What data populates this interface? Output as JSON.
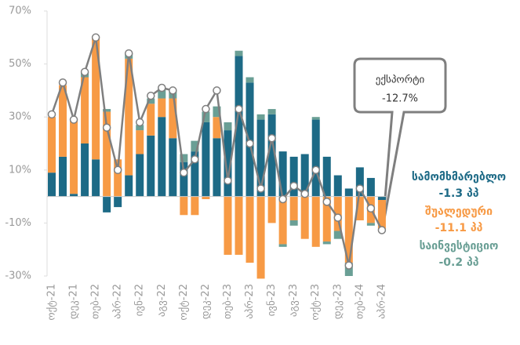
{
  "chart_data": {
    "type": "bar",
    "categories": [
      "ოქტ-21",
      null,
      "დეკ-21",
      null,
      "თებ-22",
      null,
      "აპრ-22",
      null,
      "ივნ-22",
      null,
      "აგვ-22",
      null,
      "ოქტ-22",
      null,
      "დეკ-22",
      null,
      "თებ-23",
      null,
      "აპრ-23",
      null,
      "ივნ-23",
      null,
      "აგვ-23",
      null,
      "ოქტ-23",
      null,
      "დეკ-23",
      null,
      "თებ-24",
      null,
      "აპრ-24"
    ],
    "series": [
      {
        "name": "სამომხმარებლო",
        "color": "#1d6a86",
        "values": [
          9,
          15,
          1,
          20,
          14,
          -6,
          -4,
          8,
          16,
          23,
          30,
          22,
          13,
          17,
          28,
          22,
          25,
          53,
          43,
          29,
          31,
          17,
          15,
          16,
          29,
          15,
          8,
          3,
          11,
          7,
          -1.3
        ],
        "value_labels": [
          null,
          null,
          null,
          null,
          null,
          null,
          null,
          null,
          null,
          null,
          null,
          null,
          null,
          null,
          null,
          null,
          null,
          null,
          null,
          null,
          null,
          null,
          null,
          null,
          null,
          null,
          null,
          null,
          null,
          null,
          "-1.3 პპ"
        ]
      },
      {
        "name": "შუალედური",
        "color": "#f79a45",
        "values": [
          21,
          27,
          28,
          25,
          46,
          32,
          14,
          44,
          9,
          12,
          7,
          15,
          -7,
          -7,
          -1,
          8,
          -22,
          -22,
          -25,
          -31,
          -10,
          -18,
          -9,
          -16,
          -19,
          -17,
          -13,
          -25,
          -9,
          -10,
          -11.1
        ],
        "value_labels": [
          null,
          null,
          null,
          null,
          null,
          null,
          null,
          null,
          null,
          null,
          null,
          null,
          null,
          null,
          null,
          null,
          null,
          null,
          null,
          null,
          null,
          null,
          null,
          null,
          null,
          null,
          null,
          null,
          null,
          null,
          "-11.1 პპ"
        ]
      },
      {
        "name": "საინვესტიციო",
        "color": "#6a9f95",
        "values": [
          0,
          0,
          0,
          2,
          0,
          1,
          0,
          2,
          2,
          2,
          4,
          3,
          3,
          4,
          4,
          4,
          3,
          2,
          2,
          2,
          2,
          -1,
          -2,
          0,
          1,
          -1,
          -3,
          -5,
          0,
          -1,
          -0.2
        ],
        "value_labels": [
          null,
          null,
          null,
          null,
          null,
          null,
          null,
          null,
          null,
          null,
          null,
          null,
          null,
          null,
          null,
          null,
          null,
          null,
          null,
          null,
          null,
          null,
          null,
          null,
          null,
          null,
          null,
          null,
          null,
          null,
          "-0.2 პპ"
        ]
      },
      {
        "name": "ექსპორტი",
        "type": "line",
        "color": "#7f7f7f",
        "values": [
          31,
          43,
          29,
          47,
          60,
          26,
          10,
          54,
          28,
          38,
          41,
          40,
          9,
          14,
          33,
          40,
          6,
          33,
          20,
          3,
          22,
          -1,
          4,
          1,
          10,
          -2,
          -8,
          -26,
          3,
          -4.5,
          -12.7
        ],
        "value_labels": [
          null,
          null,
          null,
          null,
          null,
          null,
          null,
          null,
          null,
          null,
          null,
          null,
          null,
          null,
          null,
          null,
          null,
          null,
          null,
          null,
          null,
          null,
          null,
          null,
          null,
          null,
          null,
          null,
          null,
          null,
          "-12.7%"
        ]
      }
    ],
    "ylim": [
      -30,
      70
    ],
    "yticks": [
      {
        "value": -30,
        "label": "-30%"
      },
      {
        "value": -10,
        "label": "-10%"
      },
      {
        "value": 10,
        "label": "10%"
      },
      {
        "value": 30,
        "label": "30%"
      },
      {
        "value": 50,
        "label": "50%"
      },
      {
        "value": 70,
        "label": "70%"
      }
    ]
  }
}
